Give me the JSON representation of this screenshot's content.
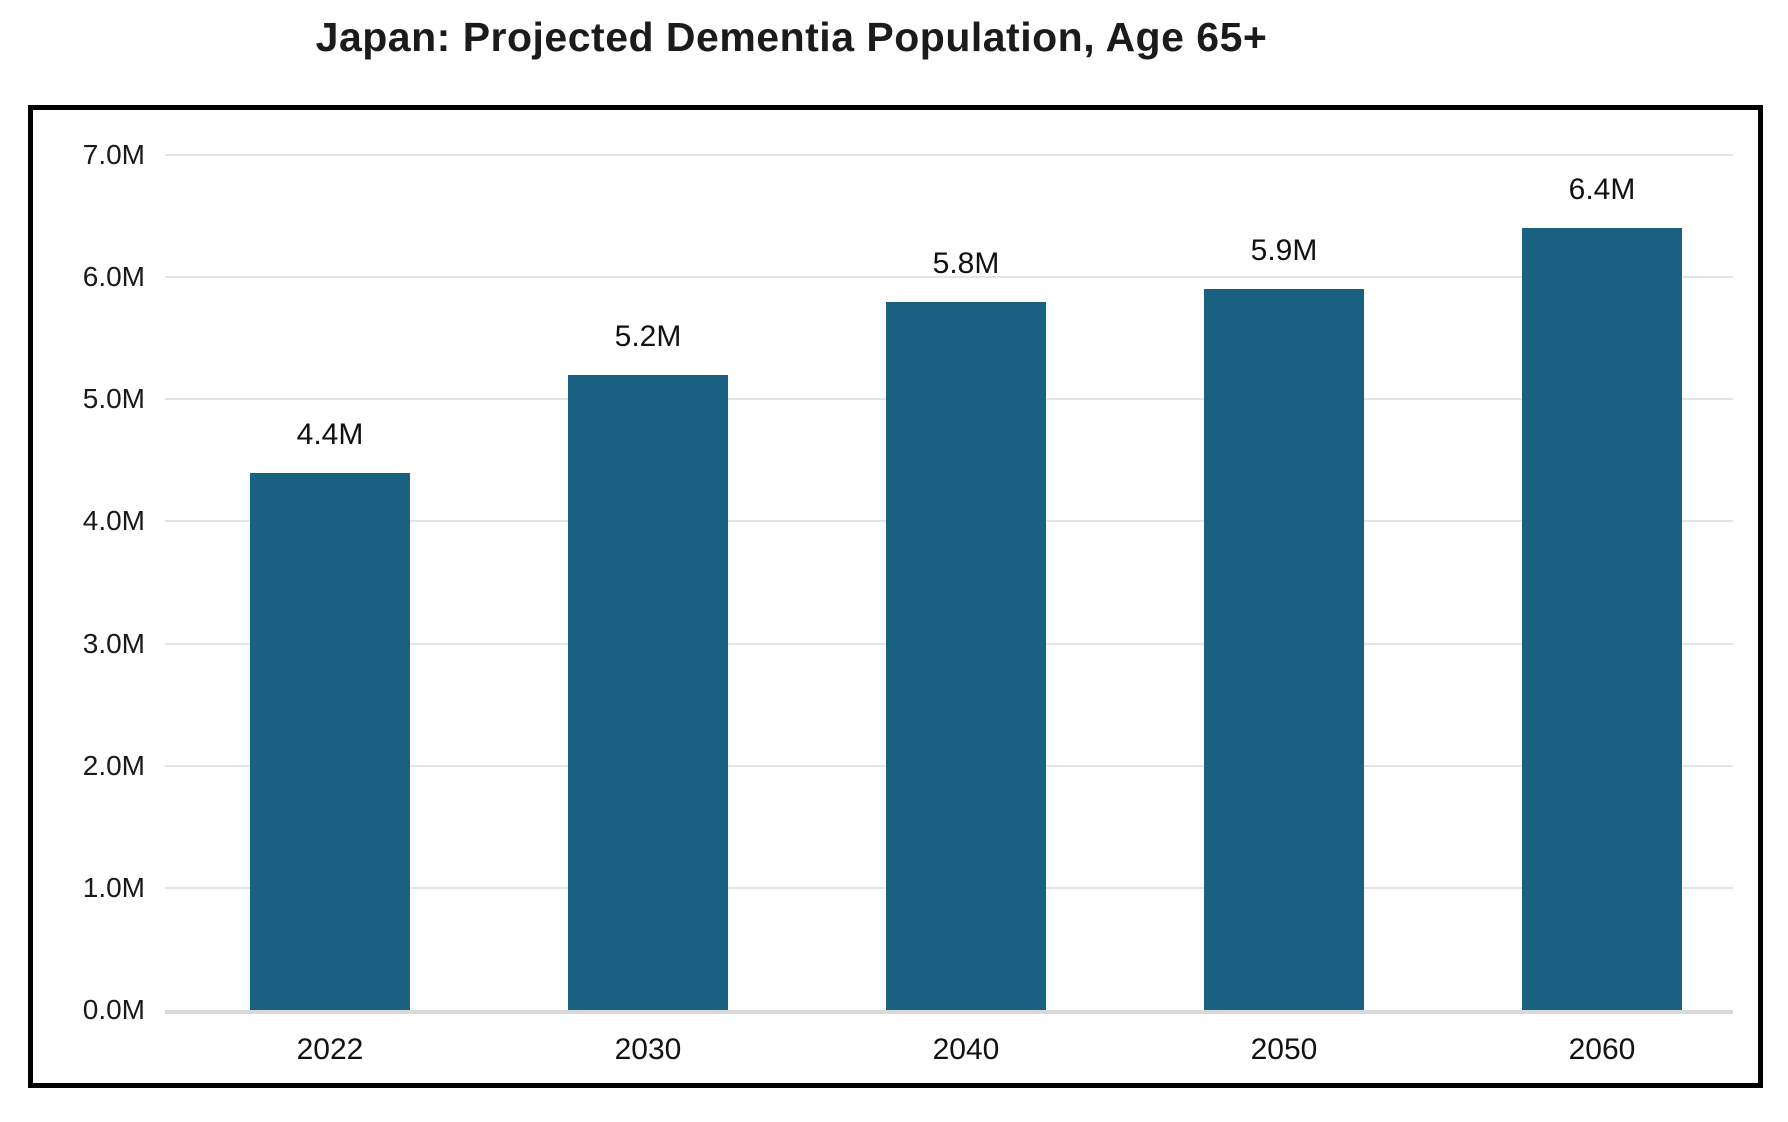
{
  "title": "Japan: Projected Dementia Population, Age 65+",
  "chart_data": {
    "type": "bar",
    "title": "Japan: Projected Dementia Population, Age 65+",
    "categories": [
      "2022",
      "2030",
      "2040",
      "2050",
      "2060"
    ],
    "values": [
      4.4,
      5.2,
      5.8,
      5.9,
      6.4
    ],
    "bar_labels": [
      "4.4M",
      "5.2M",
      "5.8M",
      "5.9M",
      "6.4M"
    ],
    "xlabel": "",
    "ylabel": "",
    "ylim": [
      0,
      7
    ],
    "ytick_step": 1,
    "ytick_labels": [
      "0.0M",
      "1.0M",
      "2.0M",
      "3.0M",
      "4.0M",
      "5.0M",
      "6.0M",
      "7.0M"
    ],
    "grid": "horizontal",
    "legend": "none",
    "colors": {
      "bar": "#1A6080",
      "gridline": "#E4E4E4",
      "axis_line": "#D9D9D9",
      "frame_border": "#000000",
      "text": "#1a1a1a",
      "title_text": "#1b1b1b",
      "background": "#FFFFFF"
    }
  }
}
